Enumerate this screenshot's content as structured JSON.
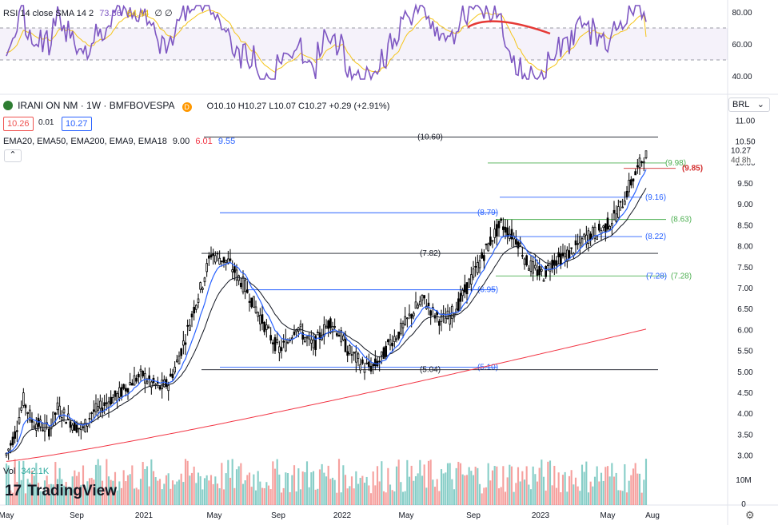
{
  "rsi_header": {
    "label": "RSI 14 close SMA 14 2",
    "rsi_value": "73.86",
    "sma_value": "64.44",
    "extra": "∅ ∅"
  },
  "symbol_header": {
    "name": "IRANI ON NM · 1W · BMFBOVESPA",
    "ohlc": "O10.10 H10.27 L10.07 C10.27 +0.29 (+2.91%)"
  },
  "bid": "10.26",
  "spread": "0.01",
  "ask": "10.27",
  "ema_header": {
    "label": "EMA20, EMA50, EMA200, EMA9, EMA18",
    "v1": "9.00",
    "v2": "6.01",
    "v3": "9.55"
  },
  "currency": "BRL",
  "vol_header": {
    "label": "Vol",
    "value": "342.1K"
  },
  "brand": "TradingView",
  "time_axis": [
    "May",
    "Sep",
    "2021",
    "May",
    "Sep",
    "2022",
    "May",
    "Sep",
    "2023",
    "May",
    "Aug"
  ],
  "price_axis": [
    "11.00",
    "10.50",
    "10.00",
    "9.50",
    "9.00",
    "8.50",
    "8.00",
    "7.50",
    "7.00",
    "6.50",
    "6.00",
    "5.50",
    "5.00",
    "4.50",
    "4.00",
    "3.50",
    "3.00"
  ],
  "rsi_axis": [
    "80.00",
    "60.00",
    "40.00"
  ],
  "vol_axis": [
    "10M",
    "0"
  ],
  "last_price_label": "10.27",
  "countdown_label": "4d 8h",
  "colors": {
    "up": "#26a69a",
    "down": "#ef5350",
    "candle": "#000000",
    "ema_fast": "#2962ff",
    "ema_slow": "#131722",
    "ema200": "#f23645",
    "rsi": "#7e57c2",
    "rsi_sma": "#f5c518",
    "fib_green": "#4caf50",
    "fib_blue": "#2962ff",
    "level_red": "#d32f2f"
  },
  "chart_data": {
    "type": "candlestick",
    "title": "IRANI ON NM · 1W · BMFBOVESPA",
    "ylim": [
      2.8,
      11.2
    ],
    "timeline_labels": [
      "May 2020",
      "Sep 2020",
      "2021",
      "May 2021",
      "Sep 2021",
      "2022",
      "May 2022",
      "Sep 2022",
      "2023",
      "May 2023",
      "Aug 2023"
    ],
    "close_path": [
      3.0,
      3.5,
      4.3,
      3.8,
      3.7,
      3.6,
      4.1,
      3.9,
      3.7,
      3.6,
      4.0,
      4.1,
      4.3,
      4.4,
      4.6,
      4.8,
      4.9,
      4.7,
      4.6,
      4.7,
      5.2,
      5.8,
      6.5,
      7.1,
      7.8,
      7.7,
      7.6,
      7.3,
      7.0,
      6.6,
      6.2,
      5.8,
      5.5,
      5.7,
      6.1,
      5.8,
      5.6,
      5.9,
      6.2,
      5.9,
      5.5,
      5.3,
      5.1,
      5.1,
      5.3,
      5.7,
      5.9,
      6.2,
      6.5,
      6.7,
      6.4,
      6.2,
      6.3,
      6.6,
      7.0,
      7.4,
      7.8,
      8.2,
      8.5,
      8.3,
      8.1,
      7.6,
      7.4,
      7.3,
      7.6,
      7.7,
      7.8,
      8.0,
      8.2,
      8.3,
      8.4,
      8.6,
      8.9,
      9.4,
      9.8,
      10.27
    ],
    "levels": [
      {
        "label": "(10.60)",
        "value": 10.6
      },
      {
        "label": "(9.98)",
        "value": 9.98
      },
      {
        "label": "(9.85)",
        "value": 9.85
      },
      {
        "label": "(9.16)",
        "value": 9.16
      },
      {
        "label": "(8.79)",
        "value": 8.79
      },
      {
        "label": "(8.63)",
        "value": 8.63
      },
      {
        "label": "(8.22)",
        "value": 8.22
      },
      {
        "label": "(7.82)",
        "value": 7.82
      },
      {
        "label": "(7.28)",
        "value": 7.28
      },
      {
        "label": "(7.28)",
        "value": 7.28
      },
      {
        "label": "(6.95)",
        "value": 6.95
      },
      {
        "label": "(5.10)",
        "value": 5.1
      },
      {
        "label": "(5.04)",
        "value": 5.04
      }
    ],
    "ema200": {
      "start": 2.85,
      "end": 6.01
    },
    "rsi": {
      "ylim": [
        30,
        85
      ],
      "upper_band": 70,
      "lower_band": 50,
      "last": 73.86,
      "sma_last": 64.44
    },
    "volume": {
      "ylim_label": "10M",
      "last": "342.1K"
    }
  }
}
